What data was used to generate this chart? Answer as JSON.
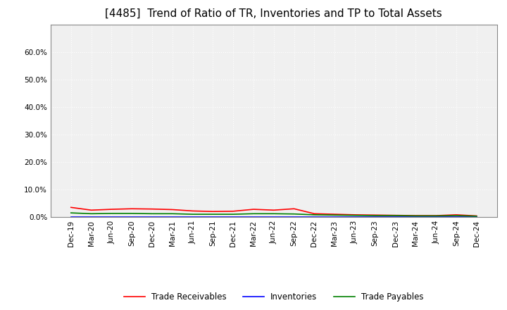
{
  "title": "[4485]  Trend of Ratio of TR, Inventories and TP to Total Assets",
  "x_labels": [
    "Dec-19",
    "Mar-20",
    "Jun-20",
    "Sep-20",
    "Dec-20",
    "Mar-21",
    "Jun-21",
    "Sep-21",
    "Dec-21",
    "Mar-22",
    "Jun-22",
    "Sep-22",
    "Dec-22",
    "Mar-23",
    "Jun-23",
    "Sep-23",
    "Dec-23",
    "Mar-24",
    "Jun-24",
    "Sep-24",
    "Dec-24"
  ],
  "trade_receivables": [
    0.035,
    0.025,
    0.028,
    0.03,
    0.029,
    0.027,
    0.022,
    0.02,
    0.021,
    0.028,
    0.025,
    0.03,
    0.012,
    0.01,
    0.008,
    0.007,
    0.006,
    0.005,
    0.005,
    0.008,
    0.004
  ],
  "inventories": [
    0.0001,
    0.0001,
    0.0001,
    0.0001,
    0.0001,
    0.0001,
    0.0001,
    0.0001,
    0.0001,
    0.0001,
    0.0001,
    0.0001,
    0.0001,
    0.0001,
    0.0001,
    0.0001,
    0.0001,
    0.0001,
    0.0001,
    0.0001,
    0.0001
  ],
  "trade_payables": [
    0.015,
    0.012,
    0.013,
    0.013,
    0.012,
    0.012,
    0.01,
    0.01,
    0.01,
    0.012,
    0.012,
    0.011,
    0.008,
    0.007,
    0.006,
    0.005,
    0.005,
    0.004,
    0.004,
    0.005,
    0.003
  ],
  "ylim": [
    0.0,
    0.7
  ],
  "yticks": [
    0.0,
    0.1,
    0.2,
    0.3,
    0.4,
    0.5,
    0.6
  ],
  "line_colors": {
    "trade_receivables": "#ff0000",
    "inventories": "#0000ff",
    "trade_payables": "#008000"
  },
  "legend_labels": [
    "Trade Receivables",
    "Inventories",
    "Trade Payables"
  ],
  "bg_color": "#ffffff",
  "plot_bg_color": "#f0f0f0",
  "grid_color": "#ffffff",
  "title_color": "#000000",
  "title_fontsize": 11,
  "tick_fontsize": 7.5,
  "line_width": 1.2
}
